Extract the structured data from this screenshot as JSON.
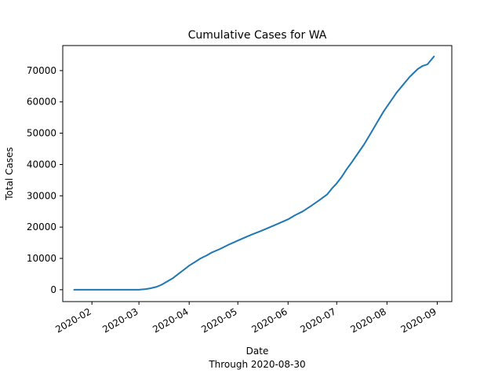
{
  "chart_data": {
    "type": "line",
    "title": "Cumulative Cases for WA",
    "xlabel": "Date",
    "xlabel_note": "Through 2020-08-30",
    "ylabel": "Total Cases",
    "xlim": [
      "2020-01-14",
      "2020-09-10"
    ],
    "ylim": [
      -3800,
      78000
    ],
    "yticks": [
      0,
      10000,
      20000,
      30000,
      40000,
      50000,
      60000,
      70000
    ],
    "xticks": [
      "2020-02",
      "2020-03",
      "2020-04",
      "2020-05",
      "2020-06",
      "2020-07",
      "2020-08",
      "2020-09"
    ],
    "grid": false,
    "color": "#1f77b4",
    "series": [
      {
        "x": [
          "2020-01-21",
          "2020-02-01",
          "2020-02-15",
          "2020-03-01",
          "2020-03-05",
          "2020-03-08",
          "2020-03-12",
          "2020-03-15",
          "2020-03-18",
          "2020-03-22",
          "2020-03-26",
          "2020-03-29",
          "2020-04-01",
          "2020-04-05",
          "2020-04-08",
          "2020-04-12",
          "2020-04-15",
          "2020-04-20",
          "2020-04-25",
          "2020-05-01",
          "2020-05-05",
          "2020-05-10",
          "2020-05-15",
          "2020-05-20",
          "2020-05-25",
          "2020-06-01",
          "2020-06-05",
          "2020-06-10",
          "2020-06-15",
          "2020-06-20",
          "2020-06-25",
          "2020-06-28",
          "2020-07-01",
          "2020-07-04",
          "2020-07-07",
          "2020-07-10",
          "2020-07-14",
          "2020-07-18",
          "2020-07-22",
          "2020-07-26",
          "2020-07-30",
          "2020-08-03",
          "2020-08-07",
          "2020-08-11",
          "2020-08-15",
          "2020-08-20",
          "2020-08-23",
          "2020-08-26",
          "2020-08-30"
        ],
        "y": [
          0,
          0,
          0,
          0,
          200,
          450,
          950,
          1600,
          2500,
          3700,
          5300,
          6500,
          7700,
          9000,
          10000,
          11000,
          11900,
          13000,
          14300,
          15700,
          16600,
          17700,
          18700,
          19800,
          20900,
          22500,
          23700,
          25000,
          26700,
          28500,
          30400,
          32300,
          34000,
          36000,
          38400,
          40500,
          43500,
          46500,
          50000,
          53500,
          57000,
          60000,
          63000,
          65500,
          68000,
          70500,
          71500,
          72000,
          74500
        ]
      }
    ]
  }
}
